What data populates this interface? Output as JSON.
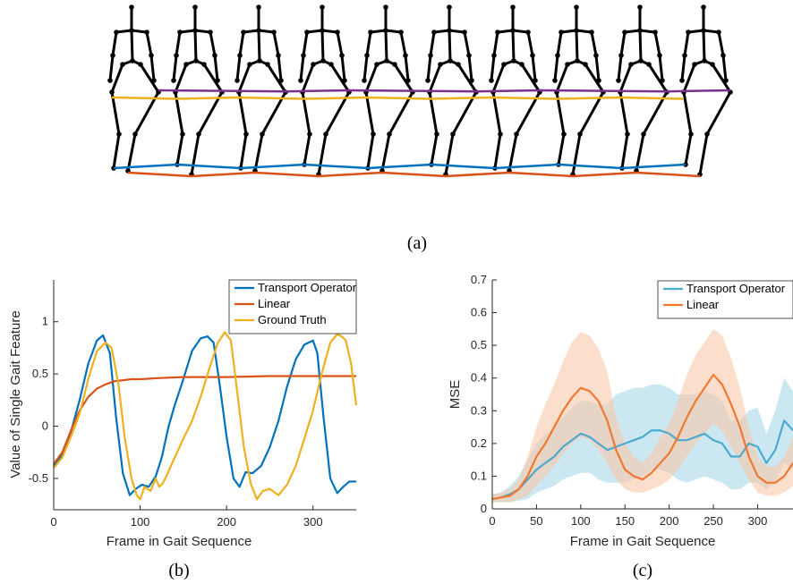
{
  "panel_a": {
    "caption": "(a)",
    "figure_count": 10,
    "colors": {
      "skeleton": "#000000",
      "purple": "#7E2F8E",
      "yellow": "#EDB120",
      "blue": "#0072BD",
      "orange": "#D95319"
    }
  },
  "chart_data": [
    {
      "id": "b",
      "type": "line",
      "caption": "(b)",
      "xlabel": "Frame in Gait Sequence",
      "ylabel": "Value of Single Gait Feature",
      "xlim": [
        0,
        350
      ],
      "ylim": [
        -0.8,
        1.4
      ],
      "xticks": [
        0,
        100,
        200,
        300
      ],
      "yticks": [
        -0.5,
        0,
        0.5,
        1
      ],
      "ytick_labels": [
        "-0.5",
        "0",
        "0.5",
        "1"
      ],
      "legend_position": "top-right",
      "series": [
        {
          "name": "Transport Operator",
          "color": "#0072BD",
          "x": [
            0,
            10,
            20,
            30,
            40,
            50,
            57,
            65,
            72,
            80,
            88,
            95,
            102,
            110,
            118,
            125,
            133,
            140,
            150,
            160,
            170,
            178,
            185,
            192,
            200,
            208,
            215,
            222,
            230,
            240,
            250,
            260,
            270,
            280,
            290,
            300,
            305,
            312,
            320,
            328,
            335,
            342,
            350
          ],
          "y": [
            -0.38,
            -0.28,
            -0.05,
            0.25,
            0.6,
            0.82,
            0.87,
            0.7,
            0.1,
            -0.45,
            -0.66,
            -0.6,
            -0.56,
            -0.58,
            -0.48,
            -0.3,
            0.0,
            0.2,
            0.45,
            0.72,
            0.84,
            0.86,
            0.8,
            0.4,
            -0.1,
            -0.5,
            -0.58,
            -0.44,
            -0.45,
            -0.38,
            -0.2,
            0.05,
            0.38,
            0.64,
            0.78,
            0.82,
            0.7,
            0.1,
            -0.5,
            -0.64,
            -0.58,
            -0.53,
            -0.53
          ]
        },
        {
          "name": "Linear",
          "color": "#D95319",
          "x": [
            0,
            10,
            20,
            30,
            40,
            50,
            60,
            70,
            80,
            90,
            100,
            120,
            150,
            200,
            250,
            300,
            350
          ],
          "y": [
            -0.36,
            -0.25,
            -0.04,
            0.15,
            0.28,
            0.36,
            0.4,
            0.43,
            0.44,
            0.45,
            0.45,
            0.46,
            0.47,
            0.47,
            0.48,
            0.48,
            0.48
          ],
          "legend_label": "Linear"
        },
        {
          "name": "Ground Truth",
          "color": "#EDB120",
          "x": [
            0,
            10,
            20,
            30,
            40,
            50,
            60,
            67,
            75,
            82,
            90,
            96,
            100,
            105,
            112,
            118,
            122,
            126,
            132,
            140,
            150,
            160,
            170,
            180,
            190,
            198,
            205,
            212,
            220,
            228,
            235,
            242,
            250,
            260,
            270,
            280,
            290,
            300,
            310,
            320,
            328,
            333,
            338,
            344,
            350
          ],
          "y": [
            -0.4,
            -0.3,
            -0.1,
            0.12,
            0.45,
            0.72,
            0.8,
            0.75,
            0.4,
            -0.1,
            -0.5,
            -0.66,
            -0.7,
            -0.58,
            -0.62,
            -0.5,
            -0.58,
            -0.55,
            -0.45,
            -0.3,
            -0.12,
            0.05,
            0.28,
            0.55,
            0.8,
            0.9,
            0.82,
            0.35,
            -0.2,
            -0.55,
            -0.7,
            -0.62,
            -0.6,
            -0.66,
            -0.56,
            -0.38,
            -0.12,
            0.15,
            0.5,
            0.8,
            0.88,
            0.86,
            0.82,
            0.6,
            0.2
          ]
        }
      ]
    },
    {
      "id": "c",
      "type": "line",
      "caption": "(c)",
      "xlabel": "Frame in Gait Sequence",
      "ylabel": "MSE",
      "xlim": [
        0,
        340
      ],
      "ylim": [
        0,
        0.7
      ],
      "xticks": [
        0,
        50,
        100,
        150,
        200,
        250,
        300
      ],
      "yticks": [
        0,
        0.1,
        0.2,
        0.3,
        0.4,
        0.5,
        0.6,
        0.7
      ],
      "ytick_labels": [
        "0",
        "0.1",
        "0.2",
        "0.3",
        "0.4",
        "0.5",
        "0.6",
        "0.7"
      ],
      "legend_position": "top-right",
      "series": [
        {
          "name": "Transport Operator",
          "color": "#4DAACF",
          "band_color": "#A8D8EA",
          "x": [
            0,
            10,
            20,
            30,
            40,
            50,
            60,
            70,
            80,
            90,
            100,
            110,
            120,
            130,
            140,
            150,
            160,
            170,
            180,
            190,
            200,
            210,
            220,
            230,
            240,
            250,
            260,
            270,
            280,
            290,
            300,
            310,
            320,
            330,
            340
          ],
          "y": [
            0.03,
            0.035,
            0.045,
            0.06,
            0.09,
            0.12,
            0.14,
            0.16,
            0.19,
            0.21,
            0.23,
            0.22,
            0.2,
            0.18,
            0.19,
            0.2,
            0.21,
            0.22,
            0.24,
            0.24,
            0.23,
            0.21,
            0.21,
            0.22,
            0.23,
            0.21,
            0.2,
            0.16,
            0.16,
            0.2,
            0.19,
            0.14,
            0.18,
            0.27,
            0.24
          ],
          "lower": [
            0.02,
            0.02,
            0.02,
            0.025,
            0.03,
            0.05,
            0.06,
            0.07,
            0.09,
            0.1,
            0.11,
            0.11,
            0.09,
            0.08,
            0.08,
            0.08,
            0.09,
            0.1,
            0.12,
            0.12,
            0.11,
            0.09,
            0.08,
            0.09,
            0.1,
            0.09,
            0.08,
            0.06,
            0.06,
            0.08,
            0.08,
            0.06,
            0.08,
            0.14,
            0.12
          ],
          "upper": [
            0.045,
            0.05,
            0.07,
            0.1,
            0.15,
            0.2,
            0.23,
            0.25,
            0.28,
            0.31,
            0.33,
            0.33,
            0.32,
            0.32,
            0.35,
            0.36,
            0.37,
            0.37,
            0.38,
            0.38,
            0.37,
            0.35,
            0.35,
            0.35,
            0.36,
            0.35,
            0.33,
            0.27,
            0.27,
            0.3,
            0.31,
            0.23,
            0.3,
            0.4,
            0.36
          ]
        },
        {
          "name": "Linear",
          "color": "#F07830",
          "band_color": "#F8C8A8",
          "x": [
            0,
            10,
            20,
            30,
            40,
            50,
            60,
            70,
            80,
            90,
            100,
            110,
            120,
            130,
            140,
            150,
            160,
            170,
            180,
            190,
            200,
            210,
            220,
            230,
            240,
            250,
            260,
            270,
            280,
            290,
            300,
            310,
            320,
            330,
            340
          ],
          "y": [
            0.03,
            0.035,
            0.04,
            0.06,
            0.1,
            0.16,
            0.2,
            0.25,
            0.3,
            0.34,
            0.37,
            0.36,
            0.33,
            0.27,
            0.18,
            0.12,
            0.1,
            0.09,
            0.11,
            0.14,
            0.17,
            0.22,
            0.28,
            0.33,
            0.37,
            0.41,
            0.38,
            0.32,
            0.25,
            0.16,
            0.1,
            0.08,
            0.08,
            0.1,
            0.14
          ],
          "lower": [
            0.02,
            0.02,
            0.02,
            0.03,
            0.04,
            0.07,
            0.1,
            0.13,
            0.17,
            0.2,
            0.22,
            0.21,
            0.18,
            0.14,
            0.09,
            0.06,
            0.05,
            0.05,
            0.06,
            0.07,
            0.09,
            0.12,
            0.16,
            0.2,
            0.23,
            0.26,
            0.24,
            0.19,
            0.14,
            0.09,
            0.05,
            0.04,
            0.04,
            0.05,
            0.07
          ],
          "upper": [
            0.045,
            0.05,
            0.06,
            0.09,
            0.16,
            0.25,
            0.32,
            0.38,
            0.45,
            0.51,
            0.54,
            0.53,
            0.49,
            0.42,
            0.28,
            0.2,
            0.16,
            0.14,
            0.17,
            0.22,
            0.26,
            0.33,
            0.41,
            0.47,
            0.51,
            0.55,
            0.53,
            0.46,
            0.37,
            0.25,
            0.16,
            0.13,
            0.13,
            0.16,
            0.22
          ]
        }
      ]
    }
  ]
}
